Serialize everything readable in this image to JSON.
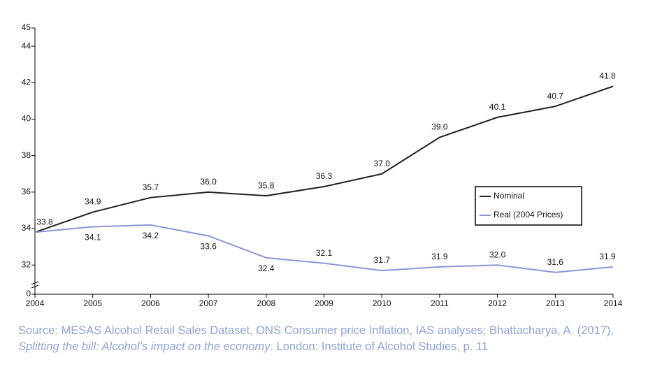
{
  "chart_data": {
    "type": "line",
    "categories": [
      "2004",
      "2005",
      "2006",
      "2007",
      "2008",
      "2009",
      "2010",
      "2011",
      "2012",
      "2013",
      "2014"
    ],
    "series": [
      {
        "name": "Nominal",
        "color": "#222222",
        "values": [
          33.8,
          34.9,
          35.7,
          36.0,
          35.8,
          36.3,
          37.0,
          39.0,
          40.1,
          40.7,
          41.8
        ],
        "value_labels": [
          "33.8",
          "34.9",
          "35.7",
          "36.0",
          "35.8",
          "36.3",
          "37.0",
          "39.0",
          "40.1",
          "40.7",
          "41.8"
        ]
      },
      {
        "name": "Real (2004 Prices)",
        "color": "#8896d6",
        "values": [
          33.8,
          34.1,
          34.2,
          33.6,
          32.4,
          32.1,
          31.7,
          31.9,
          32.0,
          31.6,
          31.9
        ],
        "value_labels": [
          null,
          "34.1",
          "34.2",
          "33.6",
          "32.4",
          "32.1",
          "31.7",
          "31.9",
          "32.0",
          "31.6",
          "31.9"
        ]
      }
    ],
    "ylim": [
      30.4,
      45
    ],
    "yticks": [
      0,
      32,
      34,
      36,
      38,
      40,
      42,
      44,
      45
    ],
    "axis_break": true,
    "legend": "right"
  },
  "source": {
    "before": "Source: MESAS Alcohol Retail Sales Dataset, ONS Consumer price Inflation, IAS analyses; Bhattacharya, A. (2017), ",
    "italic": "Splitting the bill: Alcohol’s impact on the economy",
    "after": ". London: Institute of Alcohol Studies, p. 11"
  }
}
